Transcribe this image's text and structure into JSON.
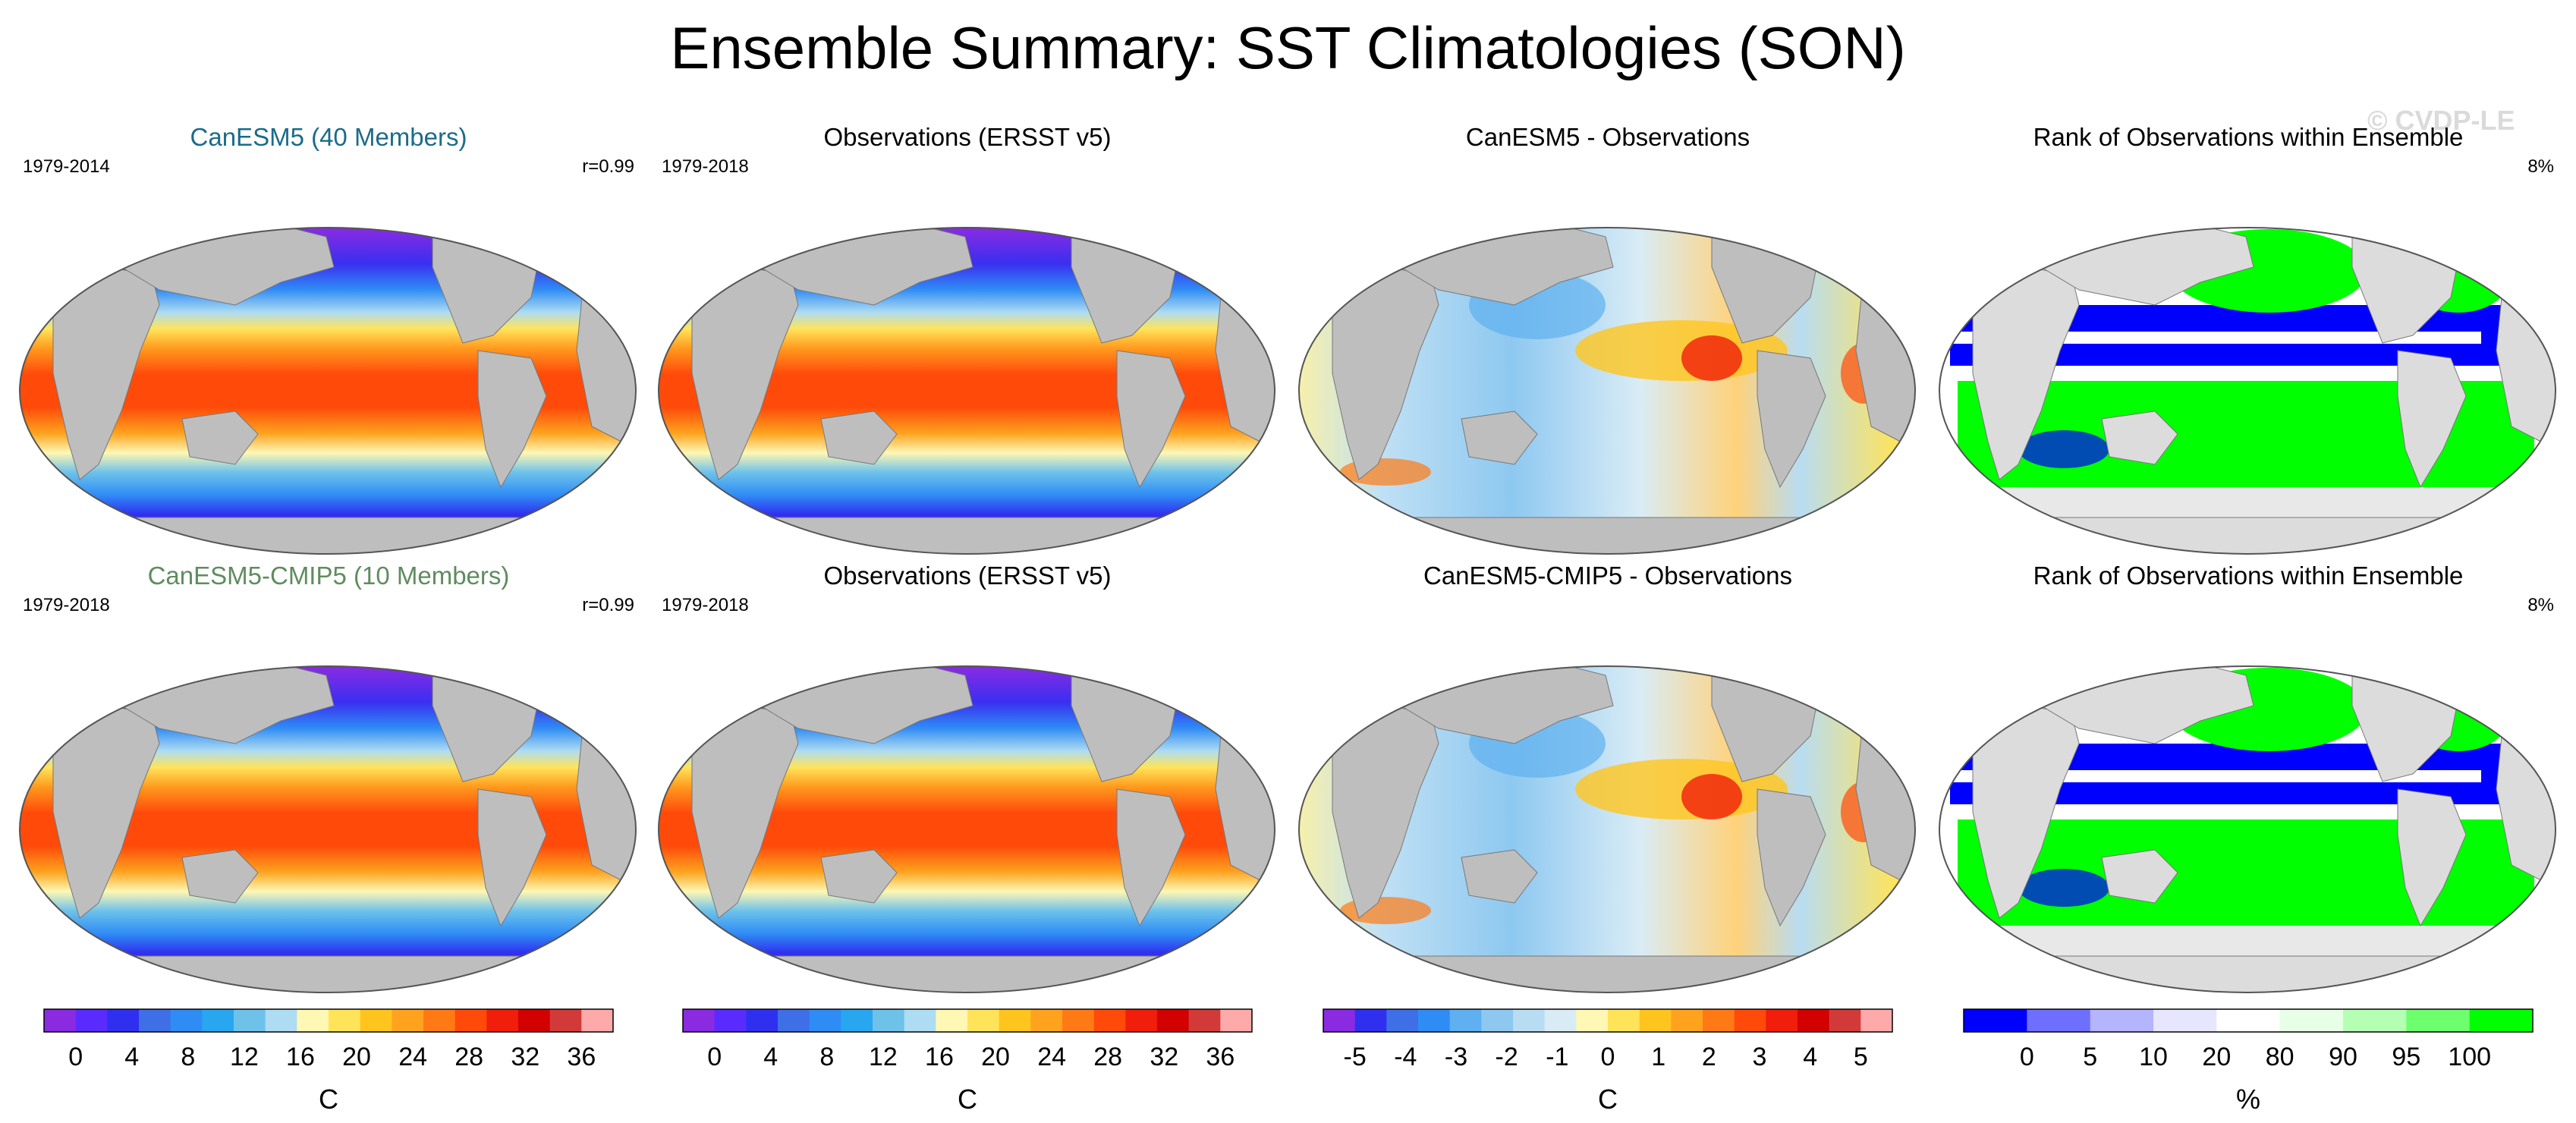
{
  "title": "Ensemble Summary: SST Climatologies (SON)",
  "watermark": "© CVDP-LE",
  "colors": {
    "land": "#bebebe",
    "model1_title": "#1b6b8a",
    "model2_title": "#5f8c5f",
    "rank_low": "#0000ff",
    "rank_high": "#00ff00"
  },
  "rows": [
    {
      "panels": [
        {
          "kind": "sst",
          "title": "CanESM5 (40 Members)",
          "title_color": "model1",
          "left": "1979-2014",
          "right": "r=0.99"
        },
        {
          "kind": "sst",
          "title": "Observations (ERSST v5)",
          "left": "1979-2018",
          "right": ""
        },
        {
          "kind": "diff",
          "title": "CanESM5 - Observations",
          "left": "",
          "right": ""
        },
        {
          "kind": "rank",
          "title": "Rank of Observations within Ensemble",
          "left": "",
          "right": "8%"
        }
      ]
    },
    {
      "panels": [
        {
          "kind": "sst",
          "title": "CanESM5-CMIP5 (10 Members)",
          "title_color": "model2",
          "left": "1979-2018",
          "right": "r=0.99"
        },
        {
          "kind": "sst",
          "title": "Observations (ERSST v5)",
          "left": "1979-2018",
          "right": ""
        },
        {
          "kind": "diff",
          "title": "CanESM5-CMIP5 - Observations",
          "left": "",
          "right": ""
        },
        {
          "kind": "rank",
          "title": "Rank of Observations within Ensemble",
          "left": "",
          "right": "8%"
        }
      ]
    }
  ],
  "colorbars": [
    {
      "label": "C",
      "ticks": [
        "0",
        "4",
        "8",
        "12",
        "16",
        "20",
        "24",
        "28",
        "32",
        "36"
      ],
      "colors": [
        "#8a2be2",
        "#5a2bff",
        "#2f2ff0",
        "#3f6fe6",
        "#2f8cf5",
        "#28a7f0",
        "#6ec2ea",
        "#aedcf2",
        "#fff7b4",
        "#ffe45a",
        "#ffc51e",
        "#ffa31e",
        "#ff7a14",
        "#ff4a0a",
        "#f01e0a",
        "#d20000",
        "#d23a3a",
        "#ffaaaa"
      ]
    },
    {
      "label": "C",
      "ticks": [
        "0",
        "4",
        "8",
        "12",
        "16",
        "20",
        "24",
        "28",
        "32",
        "36"
      ],
      "colors": [
        "#8a2be2",
        "#5a2bff",
        "#2f2ff0",
        "#3f6fe6",
        "#2f8cf5",
        "#28a7f0",
        "#6ec2ea",
        "#aedcf2",
        "#fff7b4",
        "#ffe45a",
        "#ffc51e",
        "#ffa31e",
        "#ff7a14",
        "#ff4a0a",
        "#f01e0a",
        "#d20000",
        "#d23a3a",
        "#ffaaaa"
      ]
    },
    {
      "label": "C",
      "ticks": [
        "-5",
        "-4",
        "-3",
        "-2",
        "-1",
        "0",
        "1",
        "2",
        "3",
        "4",
        "5"
      ],
      "colors": [
        "#8a2be2",
        "#2f2ff0",
        "#3f6fe6",
        "#2f8cf5",
        "#5eb0f0",
        "#8ec8f0",
        "#b8dcf2",
        "#d9ecf6",
        "#fff7b4",
        "#ffe45a",
        "#ffc51e",
        "#ffa31e",
        "#ff7a14",
        "#ff4a0a",
        "#f01e0a",
        "#d20000",
        "#d23a3a",
        "#ffaaaa"
      ]
    },
    {
      "label": "%",
      "ticks": [
        "0",
        "5",
        "10",
        "20",
        "80",
        "90",
        "95",
        "100"
      ],
      "colors": [
        "#0000ff",
        "#6e6eff",
        "#b4b4ff",
        "#e6e6ff",
        "#ffffff",
        "#e6ffe6",
        "#b4ffb4",
        "#6eff6e",
        "#00ff00"
      ]
    }
  ]
}
